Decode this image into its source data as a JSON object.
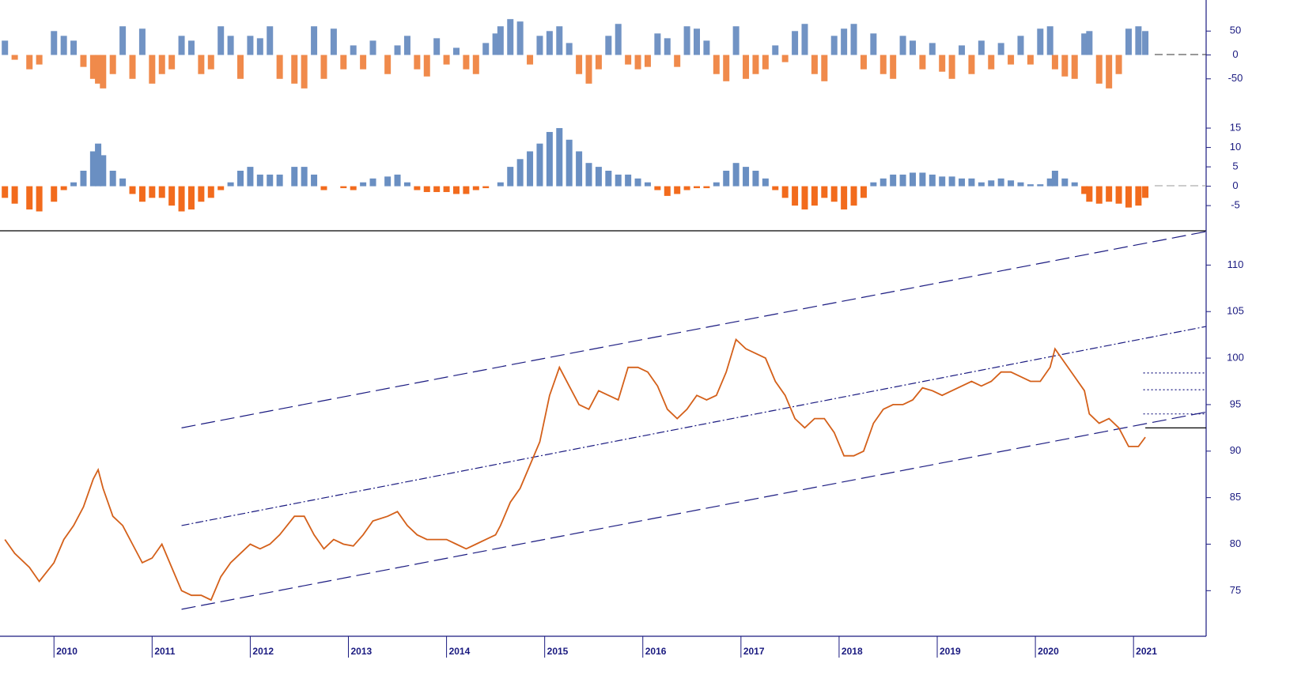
{
  "chart_data": [
    {
      "type": "bar",
      "positive_color": "#7193c4",
      "negative_color": "#f08a4b",
      "xlim": [
        2009.45,
        2021.74
      ],
      "ylim": [
        -100,
        115
      ],
      "yticks": [
        50,
        0,
        -50
      ],
      "x": [
        2009.5,
        2009.6,
        2009.75,
        2009.85,
        2010.0,
        2010.1,
        2010.2,
        2010.3,
        2010.4,
        2010.45,
        2010.5,
        2010.6,
        2010.7,
        2010.8,
        2010.9,
        2011.0,
        2011.1,
        2011.2,
        2011.3,
        2011.4,
        2011.5,
        2011.6,
        2011.7,
        2011.8,
        2011.9,
        2012.0,
        2012.1,
        2012.2,
        2012.3,
        2012.45,
        2012.55,
        2012.65,
        2012.75,
        2012.85,
        2012.95,
        2013.05,
        2013.15,
        2013.25,
        2013.4,
        2013.5,
        2013.6,
        2013.7,
        2013.8,
        2013.9,
        2014.0,
        2014.1,
        2014.2,
        2014.3,
        2014.4,
        2014.5,
        2014.55,
        2014.65,
        2014.75,
        2014.85,
        2014.95,
        2015.05,
        2015.15,
        2015.25,
        2015.35,
        2015.45,
        2015.55,
        2015.65,
        2015.75,
        2015.85,
        2015.95,
        2016.05,
        2016.15,
        2016.25,
        2016.35,
        2016.45,
        2016.55,
        2016.65,
        2016.75,
        2016.85,
        2016.95,
        2017.05,
        2017.15,
        2017.25,
        2017.35,
        2017.45,
        2017.55,
        2017.65,
        2017.75,
        2017.85,
        2017.95,
        2018.05,
        2018.15,
        2018.25,
        2018.35,
        2018.45,
        2018.55,
        2018.65,
        2018.75,
        2018.85,
        2018.95,
        2019.05,
        2019.15,
        2019.25,
        2019.35,
        2019.45,
        2019.55,
        2019.65,
        2019.75,
        2019.85,
        2019.95,
        2020.05,
        2020.15,
        2020.2,
        2020.3,
        2020.4,
        2020.5,
        2020.55,
        2020.65,
        2020.75,
        2020.85,
        2020.95,
        2021.05,
        2021.12
      ],
      "values": [
        30,
        -10,
        -30,
        -20,
        50,
        40,
        30,
        -25,
        -50,
        -60,
        -70,
        -40,
        60,
        -50,
        55,
        -60,
        -40,
        -30,
        40,
        30,
        -40,
        -30,
        60,
        40,
        -50,
        40,
        35,
        60,
        -50,
        -60,
        -70,
        60,
        -50,
        55,
        -30,
        20,
        -30,
        30,
        -40,
        20,
        40,
        -30,
        -45,
        35,
        -20,
        15,
        -30,
        -40,
        25,
        45,
        60,
        75,
        70,
        -20,
        40,
        50,
        60,
        25,
        -40,
        -60,
        -30,
        40,
        65,
        -20,
        -30,
        -25,
        45,
        35,
        -25,
        60,
        55,
        30,
        -40,
        -55,
        60,
        -50,
        -40,
        -30,
        20,
        -15,
        50,
        65,
        -40,
        -55,
        40,
        55,
        65,
        -30,
        45,
        -40,
        -50,
        40,
        30,
        -30,
        25,
        -35,
        -50,
        20,
        -40,
        30,
        -30,
        25,
        -20,
        40,
        -20,
        55,
        60,
        -30,
        -45,
        -50,
        45,
        50,
        -60,
        -70,
        -40,
        55,
        60,
        50
      ]
    },
    {
      "type": "bar",
      "positive_color": "#6a8fc2",
      "negative_color": "#f26b1d",
      "xlim": [
        2009.45,
        2021.74
      ],
      "ylim": [
        -11.5,
        19.5
      ],
      "yticks": [
        15,
        10,
        5,
        0,
        -5
      ],
      "x": [
        2009.5,
        2009.6,
        2009.75,
        2009.85,
        2010.0,
        2010.1,
        2010.2,
        2010.3,
        2010.4,
        2010.45,
        2010.5,
        2010.6,
        2010.7,
        2010.8,
        2010.9,
        2011.0,
        2011.1,
        2011.2,
        2011.3,
        2011.4,
        2011.5,
        2011.6,
        2011.7,
        2011.8,
        2011.9,
        2012.0,
        2012.1,
        2012.2,
        2012.3,
        2012.45,
        2012.55,
        2012.65,
        2012.75,
        2012.85,
        2012.95,
        2013.05,
        2013.15,
        2013.25,
        2013.4,
        2013.5,
        2013.6,
        2013.7,
        2013.8,
        2013.9,
        2014.0,
        2014.1,
        2014.2,
        2014.3,
        2014.4,
        2014.5,
        2014.55,
        2014.65,
        2014.75,
        2014.85,
        2014.95,
        2015.05,
        2015.15,
        2015.25,
        2015.35,
        2015.45,
        2015.55,
        2015.65,
        2015.75,
        2015.85,
        2015.95,
        2016.05,
        2016.15,
        2016.25,
        2016.35,
        2016.45,
        2016.55,
        2016.65,
        2016.75,
        2016.85,
        2016.95,
        2017.05,
        2017.15,
        2017.25,
        2017.35,
        2017.45,
        2017.55,
        2017.65,
        2017.75,
        2017.85,
        2017.95,
        2018.05,
        2018.15,
        2018.25,
        2018.35,
        2018.45,
        2018.55,
        2018.65,
        2018.75,
        2018.85,
        2018.95,
        2019.05,
        2019.15,
        2019.25,
        2019.35,
        2019.45,
        2019.55,
        2019.65,
        2019.75,
        2019.85,
        2019.95,
        2020.05,
        2020.15,
        2020.2,
        2020.3,
        2020.4,
        2020.5,
        2020.55,
        2020.65,
        2020.75,
        2020.85,
        2020.95,
        2021.05,
        2021.12
      ],
      "values": [
        -3,
        -4.5,
        -6,
        -6.5,
        -4,
        -1,
        1,
        4,
        9,
        11,
        8,
        4,
        2,
        -2,
        -4,
        -3,
        -3,
        -5,
        -6.5,
        -6,
        -4,
        -3,
        -1,
        1,
        4,
        5,
        3,
        3,
        3,
        5,
        5,
        3,
        -1,
        0,
        -0.5,
        -1,
        1,
        2,
        2.5,
        3,
        1,
        -1,
        -1.5,
        -1.5,
        -1.5,
        -2,
        -2,
        -1,
        -0.5,
        0,
        1,
        5,
        7,
        9,
        11,
        14,
        15,
        12,
        9,
        6,
        5,
        4,
        3,
        3,
        2,
        1,
        -1,
        -2.5,
        -2,
        -1,
        -0.5,
        -0.5,
        1,
        4,
        6,
        5,
        4,
        2,
        -1,
        -3,
        -5,
        -6,
        -5,
        -3,
        -4,
        -6,
        -5,
        -3,
        1,
        2,
        3,
        3,
        3.5,
        3.5,
        3,
        2.5,
        2.5,
        2,
        2,
        1,
        1.5,
        2,
        1.5,
        1,
        0.5,
        0.5,
        2,
        4,
        2,
        1,
        -2,
        -4,
        -4.5,
        -4,
        -4.5,
        -5.5,
        -5,
        -3
      ]
    },
    {
      "type": "line",
      "color": "#d4601a",
      "xlim": [
        2009.45,
        2021.74
      ],
      "ylim": [
        70.1,
        113.6
      ],
      "yticks": [
        75,
        80,
        85,
        90,
        95,
        100,
        105,
        110
      ],
      "xticks": [
        2010,
        2011,
        2012,
        2013,
        2014,
        2015,
        2016,
        2017,
        2018,
        2019,
        2020,
        2021
      ],
      "x": [
        2009.5,
        2009.6,
        2009.75,
        2009.85,
        2010.0,
        2010.1,
        2010.2,
        2010.3,
        2010.4,
        2010.45,
        2010.5,
        2010.6,
        2010.7,
        2010.8,
        2010.9,
        2011.0,
        2011.1,
        2011.2,
        2011.3,
        2011.4,
        2011.5,
        2011.6,
        2011.7,
        2011.8,
        2011.9,
        2012.0,
        2012.1,
        2012.2,
        2012.3,
        2012.45,
        2012.55,
        2012.65,
        2012.75,
        2012.85,
        2012.95,
        2013.05,
        2013.15,
        2013.25,
        2013.4,
        2013.5,
        2013.6,
        2013.7,
        2013.8,
        2013.9,
        2014.0,
        2014.1,
        2014.2,
        2014.3,
        2014.4,
        2014.5,
        2014.55,
        2014.65,
        2014.75,
        2014.85,
        2014.95,
        2015.05,
        2015.15,
        2015.25,
        2015.35,
        2015.45,
        2015.55,
        2015.65,
        2015.75,
        2015.85,
        2015.95,
        2016.05,
        2016.15,
        2016.25,
        2016.35,
        2016.45,
        2016.55,
        2016.65,
        2016.75,
        2016.85,
        2016.95,
        2017.05,
        2017.15,
        2017.25,
        2017.35,
        2017.45,
        2017.55,
        2017.65,
        2017.75,
        2017.85,
        2017.95,
        2018.05,
        2018.15,
        2018.25,
        2018.35,
        2018.45,
        2018.55,
        2018.65,
        2018.75,
        2018.85,
        2018.95,
        2019.05,
        2019.15,
        2019.25,
        2019.35,
        2019.45,
        2019.55,
        2019.65,
        2019.75,
        2019.85,
        2019.95,
        2020.05,
        2020.15,
        2020.2,
        2020.3,
        2020.4,
        2020.5,
        2020.55,
        2020.65,
        2020.75,
        2020.85,
        2020.95,
        2021.05,
        2021.12
      ],
      "values": [
        80.5,
        79,
        77.5,
        76,
        78,
        80.5,
        82,
        84,
        87,
        88,
        86,
        83,
        82,
        80,
        78,
        78.5,
        80,
        77.5,
        75,
        74.5,
        74.5,
        74,
        76.5,
        78,
        79,
        80,
        79.5,
        80,
        81,
        83,
        83,
        81,
        79.5,
        80.5,
        80,
        79.8,
        81,
        82.5,
        83,
        83.5,
        82,
        81,
        80.5,
        80.5,
        80.5,
        80,
        79.5,
        80,
        80.5,
        81,
        82,
        84.5,
        86,
        88.5,
        91,
        96,
        99,
        97,
        95,
        94.5,
        96.5,
        96,
        95.5,
        99,
        99,
        98.5,
        97,
        94.5,
        93.5,
        94.5,
        96,
        95.5,
        96,
        98.5,
        102,
        101,
        100.5,
        100,
        97.5,
        96,
        93.5,
        92.5,
        93.5,
        93.5,
        92,
        89.5,
        89.5,
        90,
        93,
        94.5,
        95,
        95,
        95.5,
        96.8,
        96.5,
        96,
        96.5,
        97,
        97.5,
        97,
        97.5,
        98.5,
        98.5,
        98,
        97.5,
        97.5,
        99,
        101,
        99.5,
        98,
        96.5,
        94,
        93,
        93.5,
        92.5,
        90.5,
        90.5,
        91.5
      ],
      "lines": [
        {
          "style": "dashed",
          "x": [
            2011.3,
            2021.74
          ],
          "y": [
            92.5,
            113.6
          ]
        },
        {
          "style": "dashdot",
          "x": [
            2011.3,
            2021.74
          ],
          "y": [
            82,
            103.4
          ]
        },
        {
          "style": "dashed",
          "x": [
            2011.3,
            2021.74
          ],
          "y": [
            73,
            94.2
          ]
        },
        {
          "style": "dotted",
          "x": [
            2021.1,
            2021.74
          ],
          "y": [
            98.4,
            98.4
          ]
        },
        {
          "style": "dotted",
          "x": [
            2021.1,
            2021.74
          ],
          "y": [
            96.6,
            96.6
          ]
        },
        {
          "style": "dotted",
          "x": [
            2021.1,
            2021.74
          ],
          "y": [
            94,
            94
          ]
        },
        {
          "style": "solid",
          "x": [
            2021.12,
            2021.74
          ],
          "y": [
            92.5,
            92.5
          ]
        }
      ]
    }
  ]
}
